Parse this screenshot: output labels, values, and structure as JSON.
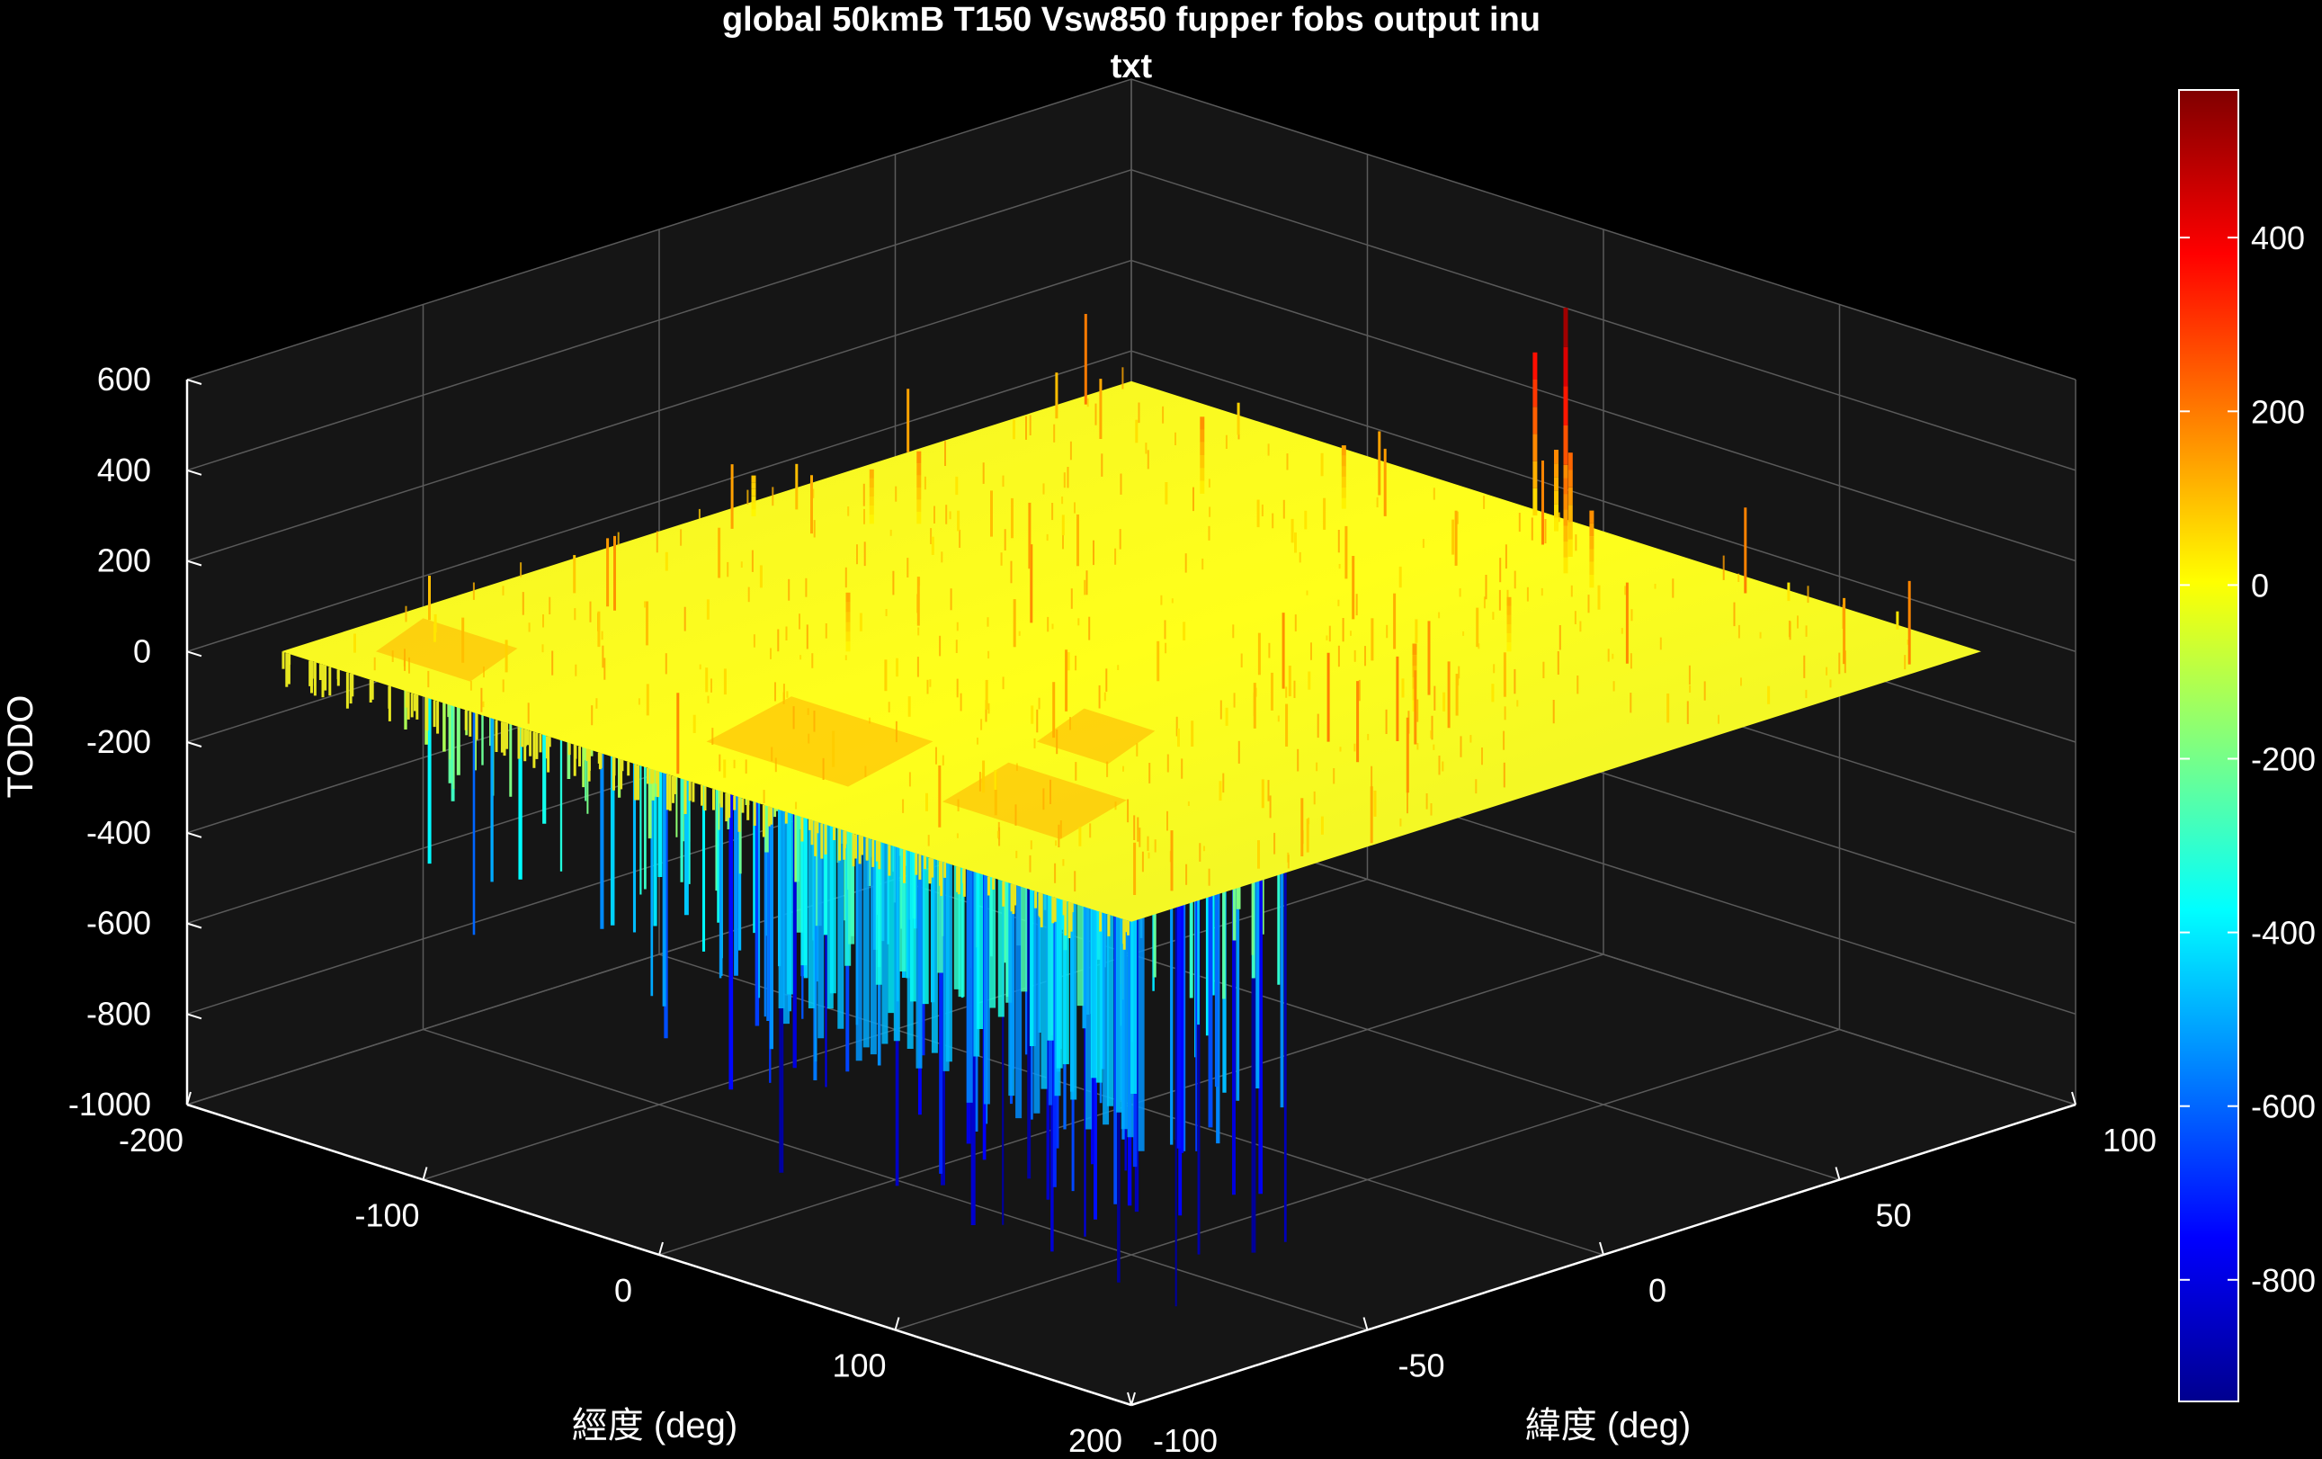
{
  "chart_data": {
    "type": "surface",
    "title": "global 50kmB T150 Vsw850 fupper fobs output inu",
    "subtitle": "txt",
    "xlabel": "經度 (deg)",
    "ylabel": "緯度 (deg)",
    "zlabel": "TODO",
    "xlim": [
      -200,
      200
    ],
    "ylim": [
      -100,
      100
    ],
    "zlim": [
      -1000,
      600
    ],
    "x_ticks": [
      "-200",
      "-100",
      "0",
      "100",
      "200"
    ],
    "y_ticks": [
      "-100",
      "-50",
      "0",
      "50",
      "100"
    ],
    "z_ticks": [
      "-1000",
      "-800",
      "-600",
      "-400",
      "-200",
      "0",
      "200",
      "400",
      "600"
    ],
    "colorbar": {
      "colormap": "jet",
      "ticks": [
        "400",
        "200",
        "0",
        "-200",
        "-400",
        "-600",
        "-800"
      ],
      "range": [
        -940,
        570
      ]
    },
    "surface_extent": {
      "x": [
        -180,
        180
      ],
      "y": [
        -90,
        90
      ],
      "z_base": 0
    },
    "grid": true,
    "background": "#000000",
    "axes_background": "#151515"
  }
}
